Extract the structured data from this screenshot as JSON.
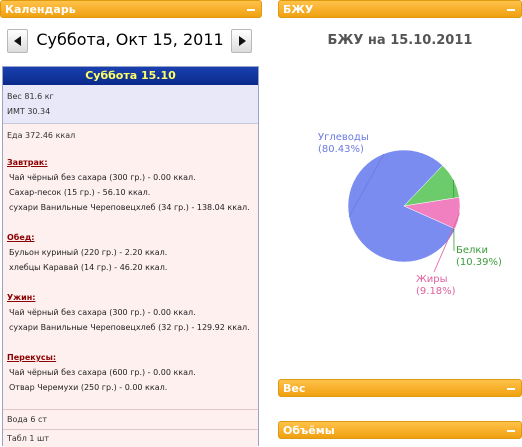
{
  "calendar": {
    "header": "Календарь",
    "date_title": "Суббота, Окт 15, 2011",
    "day_banner": "Суббота 15.10",
    "weight": "Вес 81.6 кг",
    "bmi": "ИМТ 30.34",
    "food_total": "Еда 372.46 ккал",
    "meals": [
      {
        "title": "Завтрак:",
        "items": [
          "Чай чёрный без сахара (300 гр.) - 0.00 ккал.",
          "Сахар-песок (15 гр.) - 56.10 ккал.",
          "сухари Ванильные Череповецхлеб (34 гр.) - 138.04 ккал."
        ]
      },
      {
        "title": "Обед:",
        "items": [
          "Бульон куриный (220 гр.) - 2.20 ккал.",
          "хлебцы Каравай (14 гр.) - 46.20 ккал."
        ]
      },
      {
        "title": "Ужин:",
        "items": [
          "Чай чёрный без сахара (300 гр.) - 0.00 ккал.",
          "сухари Ванильные Череповецхлеб (32 гр.) - 129.92 ккал."
        ]
      },
      {
        "title": "Перекусы:",
        "items": [
          "Чай чёрный без сахара (600 гр.) - 0.00 ккал.",
          "Отвар Черемухи (250 гр.) - 0.00 ккал."
        ]
      }
    ],
    "water": "Вода 6 ст",
    "pills": "Табл 1 шт"
  },
  "bju": {
    "header": "БЖУ",
    "title": "БЖУ на 15.10.2011"
  },
  "ves": {
    "header": "Вес"
  },
  "obem": {
    "header": "Объёмы"
  },
  "chart_data": {
    "type": "pie",
    "title": "БЖУ на 15.10.2011",
    "slices": [
      {
        "label": "Углеводы",
        "value": 80.43,
        "pct_label": "(80.43%)",
        "color": "#7b8cf0",
        "label_color": "#6a7ae0"
      },
      {
        "label": "Белки",
        "value": 10.39,
        "pct_label": "(10.39%)",
        "color": "#6ccc6c",
        "label_color": "#3c9c3c"
      },
      {
        "label": "Жиры",
        "value": 9.18,
        "pct_label": "(9.18%)",
        "color": "#f080c0",
        "label_color": "#e060a0"
      }
    ]
  }
}
